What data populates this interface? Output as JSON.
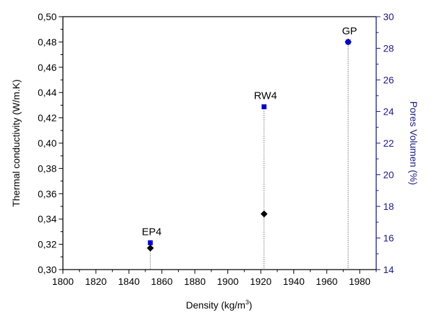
{
  "chart_data": {
    "type": "scatter",
    "title": "",
    "xlabel": "Density (kg/m³)",
    "ylabel": "Thermal conductivity (W/m.K)",
    "y2label": "Pores Volumen (%)",
    "xlim": [
      1800,
      1990
    ],
    "ylim": [
      0.3,
      0.5
    ],
    "y2lim": [
      14,
      30
    ],
    "xticks": [
      1800,
      1820,
      1840,
      1860,
      1880,
      1900,
      1920,
      1940,
      1960,
      1980
    ],
    "yticks": [
      "0,30",
      "0,32",
      "0,34",
      "0,36",
      "0,38",
      "0,40",
      "0,42",
      "0,44",
      "0,46",
      "0,48",
      "0,50"
    ],
    "y2ticks": [
      14,
      16,
      18,
      20,
      22,
      24,
      26,
      28,
      30
    ],
    "grid": false,
    "colors": {
      "conductivity": "#000000",
      "pores": "#0000cc",
      "right_axis": "#1a1a80"
    },
    "points": [
      {
        "label": "EP4",
        "x": 1853,
        "conductivity": 0.317,
        "pores": 15.7
      },
      {
        "label": "RW4",
        "x": 1922,
        "conductivity": 0.344,
        "pores": 24.3
      },
      {
        "label": "GP",
        "x": 1973,
        "conductivity": 0.48,
        "pores": 28.4
      }
    ]
  }
}
